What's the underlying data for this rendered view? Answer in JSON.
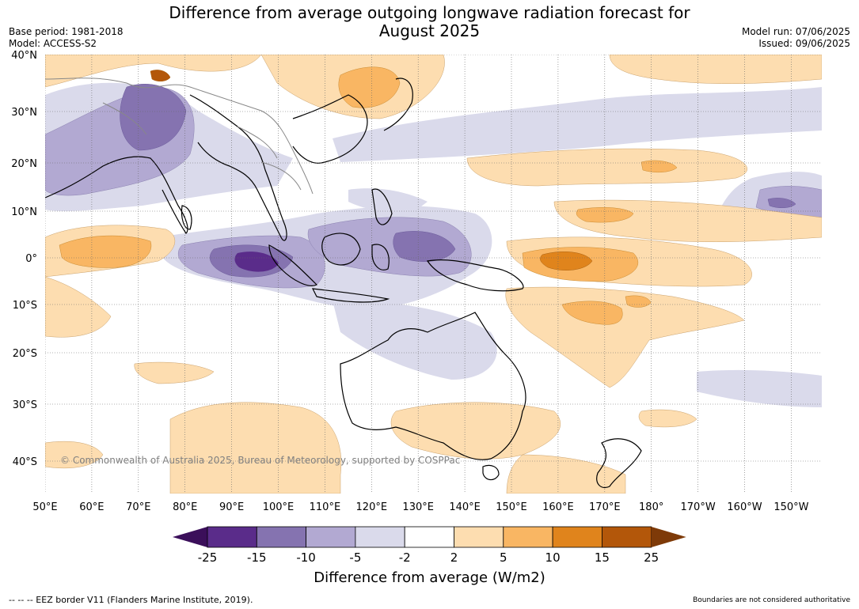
{
  "title_line1": "Difference from average outgoing longwave radiation forecast for",
  "title_line2": "August 2025",
  "base_period": "Base period: 1981-2018",
  "model": "Model: ACCESS-S2",
  "model_run": "Model run: 07/06/2025",
  "issued": "Issued: 09/06/2025",
  "copyright": "© Commonwealth of Australia 2025, Bureau of Meteorology, supported by COSPPac",
  "lat_labels": [
    "40°N",
    "30°N",
    "20°N",
    "10°N",
    "0°",
    "10°S",
    "20°S",
    "30°S",
    "40°S"
  ],
  "lon_labels": [
    "50°E",
    "60°E",
    "70°E",
    "80°E",
    "90°E",
    "100°E",
    "110°E",
    "120°E",
    "130°E",
    "140°E",
    "150°E",
    "160°E",
    "170°E",
    "180°",
    "170°W",
    "160°W",
    "150°W"
  ],
  "colorbar": {
    "label": "Difference from average (W/m2)",
    "ticks": [
      "-25",
      "-15",
      "-10",
      "-5",
      "-2",
      "2",
      "5",
      "10",
      "15",
      "25"
    ],
    "colors": [
      "#3b0f5a",
      "#5a2c8a",
      "#8573b0",
      "#b2a9d2",
      "#dadaeb",
      "#ffffff",
      "#fdddb0",
      "#f9b663",
      "#e0841c",
      "#b3570a",
      "#7e3a08"
    ]
  },
  "footer_left": "--  --  -- EEZ border V11 (Flanders Marine Institute, 2019).",
  "footer_right": "Boundaries are not considered authoritative"
}
